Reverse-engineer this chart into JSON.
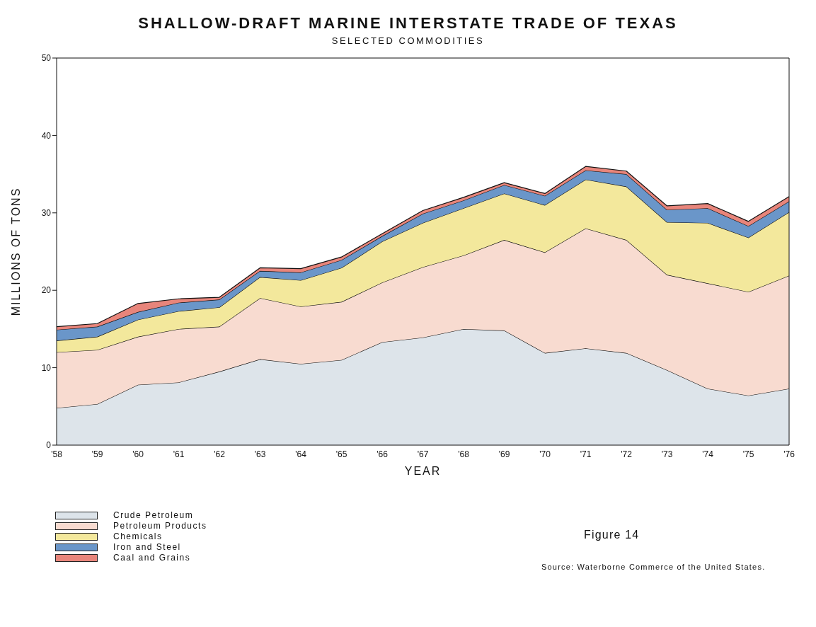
{
  "chart_data": {
    "type": "area",
    "title": "SHALLOW-DRAFT MARINE INTERSTATE TRADE OF TEXAS",
    "subtitle": "SELECTED COMMODITIES",
    "xlabel": "YEAR",
    "ylabel": "MILLIONS OF TONS",
    "categories": [
      "'58",
      "'59",
      "'60",
      "'61",
      "'62",
      "'63",
      "'64",
      "'65",
      "'66",
      "'67",
      "'68",
      "'69",
      "'70",
      "'71",
      "'72",
      "'73",
      "'74",
      "'75",
      "'76"
    ],
    "stacked": true,
    "ylim": [
      0,
      50
    ],
    "yticks": [
      0,
      10,
      20,
      30,
      40,
      50
    ],
    "grid": false,
    "legend": "bottom left",
    "series": [
      {
        "name": "Crude Petroleum",
        "color": "#dde4ea",
        "values": [
          4.8,
          5.3,
          7.8,
          8.1,
          9.5,
          11.1,
          10.5,
          11.0,
          13.3,
          13.9,
          15.0,
          14.8,
          11.9,
          12.5,
          11.9,
          9.7,
          7.3,
          6.4,
          7.3
        ]
      },
      {
        "name": "Petroleum Products",
        "color": "#f8dbd0",
        "values": [
          7.2,
          7.0,
          6.2,
          6.9,
          5.8,
          7.9,
          7.4,
          7.5,
          7.7,
          9.1,
          9.5,
          11.7,
          13.0,
          15.5,
          14.6,
          12.3,
          13.6,
          13.4,
          14.6
        ]
      },
      {
        "name": "Chemicals",
        "color": "#f3e89c",
        "values": [
          1.5,
          1.7,
          2.2,
          2.3,
          2.5,
          2.7,
          3.4,
          4.4,
          5.3,
          5.7,
          6.1,
          6.0,
          6.1,
          6.3,
          6.9,
          6.8,
          7.8,
          7.0,
          8.2
        ]
      },
      {
        "name": "Iron and Steel",
        "color": "#6a96c9",
        "values": [
          1.4,
          1.3,
          1.0,
          1.1,
          1.0,
          0.8,
          1.0,
          1.0,
          0.7,
          1.2,
          1.0,
          1.1,
          1.2,
          1.2,
          1.6,
          1.6,
          1.9,
          1.5,
          1.4
        ]
      },
      {
        "name": "Caal and Grains",
        "color": "#e8857b",
        "values": [
          0.4,
          0.4,
          1.1,
          0.5,
          0.3,
          0.4,
          0.5,
          0.4,
          0.3,
          0.4,
          0.4,
          0.3,
          0.3,
          0.5,
          0.4,
          0.5,
          0.6,
          0.6,
          0.6
        ]
      }
    ],
    "annotations": [
      "Figure 14",
      "Source: Waterborne Commerce of the United States."
    ]
  }
}
